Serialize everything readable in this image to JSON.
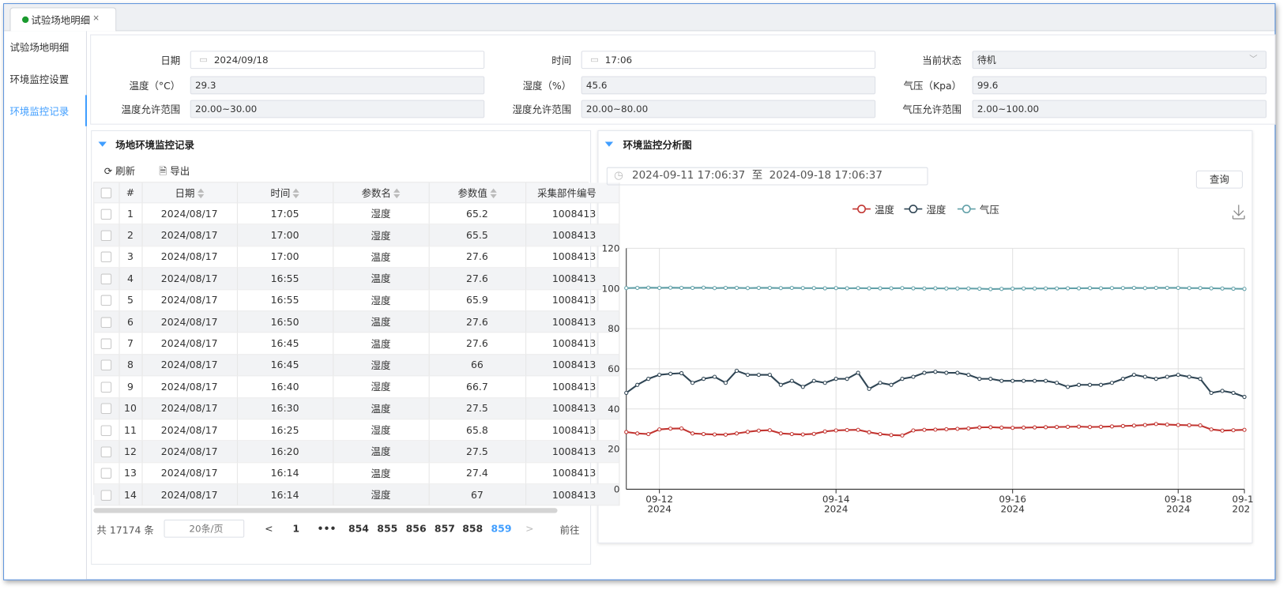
{
  "tab": {
    "title": "试验场地明细",
    "close": "×"
  },
  "sidebar": [
    "试验场地明细",
    "环境监控设置",
    "环境监控记录"
  ],
  "form": [
    {
      "label": "日期",
      "value": "2024/09/18"
    },
    {
      "label": "时间",
      "value": "17:06"
    },
    {
      "label": "当前状态",
      "value": "待机"
    },
    {
      "label": "温度（°C）",
      "value": "29.3"
    },
    {
      "label": "湿度（%）",
      "value": "45.6"
    },
    {
      "label": "气压（Kpa）",
      "value": "99.6"
    },
    {
      "label": "温度允许范围",
      "value": "20.00~30.00"
    },
    {
      "label": "湿度允许范围",
      "value": "20.00~80.00"
    },
    {
      "label": "气压允许范围",
      "value": "2.00~100.00"
    }
  ],
  "records": {
    "title": "场地环境监控记录",
    "toolbar": [
      "刷新",
      "导出"
    ],
    "columns": [
      "#",
      "日期",
      "时间",
      "参数名",
      "参数值",
      "采集部件编号"
    ],
    "rows": [
      [
        1,
        "2024/08/17",
        "17:05",
        "湿度",
        65.2,
        "1008413"
      ],
      [
        2,
        "2024/08/17",
        "17:00",
        "湿度",
        65.5,
        "1008413"
      ],
      [
        3,
        "2024/08/17",
        "17:00",
        "温度",
        27.6,
        "1008413"
      ],
      [
        4,
        "2024/08/17",
        "16:55",
        "温度",
        27.6,
        "1008413"
      ],
      [
        5,
        "2024/08/17",
        "16:55",
        "湿度",
        65.9,
        "1008413"
      ],
      [
        6,
        "2024/08/17",
        "16:50",
        "温度",
        27.6,
        "1008413"
      ],
      [
        7,
        "2024/08/17",
        "16:45",
        "温度",
        27.6,
        "1008413"
      ],
      [
        8,
        "2024/08/17",
        "16:45",
        "湿度",
        66,
        "1008413"
      ],
      [
        9,
        "2024/08/17",
        "16:40",
        "湿度",
        66.7,
        "1008413"
      ],
      [
        10,
        "2024/08/17",
        "16:30",
        "温度",
        27.5,
        "1008413"
      ],
      [
        11,
        "2024/08/17",
        "16:25",
        "湿度",
        65.8,
        "1008413"
      ],
      [
        12,
        "2024/08/17",
        "16:20",
        "温度",
        27.5,
        "1008413"
      ],
      [
        13,
        "2024/08/17",
        "16:14",
        "温度",
        27.4,
        "1008413"
      ],
      [
        14,
        "2024/08/17",
        "16:14",
        "湿度",
        67,
        "1008413"
      ]
    ],
    "pagination": {
      "total": "共 17174 条",
      "page_size": "20条/页",
      "prev": "<",
      "pages": [
        "1",
        "•••",
        "854",
        "855",
        "856",
        "857",
        "858",
        "859"
      ],
      "next": ">",
      "goto": "前往"
    }
  },
  "chart_panel": {
    "title": "环境监控分析图",
    "range_start": "2024-09-11 17:06:37",
    "range_sep": "至",
    "range_end": "2024-09-18 17:06:37",
    "query": "查询"
  },
  "chart_data": {
    "type": "line",
    "categories": [
      null,
      null,
      null,
      "09-12\n2024",
      null,
      null,
      null,
      null,
      null,
      null,
      null,
      null,
      null,
      null,
      null,
      null,
      null,
      null,
      null,
      "09-14\n2024",
      null,
      null,
      null,
      null,
      null,
      null,
      null,
      null,
      null,
      null,
      null,
      null,
      null,
      null,
      null,
      "09-16\n2024",
      null,
      null,
      null,
      null,
      null,
      null,
      null,
      null,
      null,
      null,
      null,
      null,
      null,
      null,
      "09-18\n2024",
      null,
      null,
      null,
      null,
      null,
      "09-1\n202"
    ],
    "series": [
      {
        "name": "温度",
        "color": "#c23531",
        "values": [
          28.5,
          27.8,
          27.5,
          29.8,
          30.2,
          30.3,
          27.8,
          27.5,
          27.3,
          27.2,
          27.8,
          28.6,
          29.2,
          29.4,
          27.8,
          27.5,
          27.3,
          27.6,
          28.8,
          29.3,
          29.5,
          29.6,
          28.4,
          27.5,
          27.0,
          26.8,
          29.3,
          29.6,
          29.7,
          29.9,
          30.1,
          30.3,
          30.8,
          30.9,
          30.7,
          30.6,
          30.7,
          30.8,
          30.9,
          31.0,
          31.1,
          31.2,
          31.0,
          31.1,
          31.3,
          31.5,
          31.7,
          32.0,
          32.5,
          32.2,
          32.0,
          31.9,
          31.8,
          29.8,
          29.2,
          29.4,
          29.6
        ]
      },
      {
        "name": "湿度",
        "color": "#2f4554",
        "values": [
          48,
          52,
          55,
          57,
          57.5,
          57.8,
          53,
          55,
          56,
          53,
          59,
          57,
          57,
          57,
          52,
          54,
          51,
          54,
          53,
          55,
          55,
          58,
          50,
          53,
          52,
          55,
          56,
          58,
          58.5,
          58,
          58,
          57,
          55,
          55,
          54,
          54,
          54,
          54,
          54,
          53,
          51,
          52,
          52,
          52,
          53,
          55,
          57,
          56,
          55,
          56,
          57,
          56,
          55,
          48,
          49,
          48,
          46
        ]
      },
      {
        "name": "气压",
        "color": "#61a0a8",
        "values": [
          100.2,
          100.3,
          100.4,
          100.3,
          100.4,
          100.3,
          100.3,
          100.4,
          100.2,
          100.3,
          100.3,
          100.2,
          100.3,
          100.3,
          100.2,
          100.3,
          100.2,
          100.2,
          100.1,
          100.2,
          100.1,
          100.2,
          100.1,
          100.1,
          100.1,
          100.2,
          100.1,
          100.0,
          100.1,
          100.0,
          100.0,
          100.0,
          99.9,
          99.7,
          99.8,
          99.9,
          100.0,
          100.0,
          100.0,
          100.0,
          100.1,
          100.1,
          100.2,
          100.1,
          100.2,
          100.2,
          100.3,
          100.2,
          100.3,
          100.3,
          100.3,
          100.2,
          100.2,
          100.1,
          100.0,
          99.9,
          99.8
        ]
      }
    ],
    "ylim": [
      0,
      120
    ],
    "yticks": [
      0,
      20,
      40,
      60,
      80,
      100,
      120
    ],
    "grid": true,
    "legend": "top"
  }
}
